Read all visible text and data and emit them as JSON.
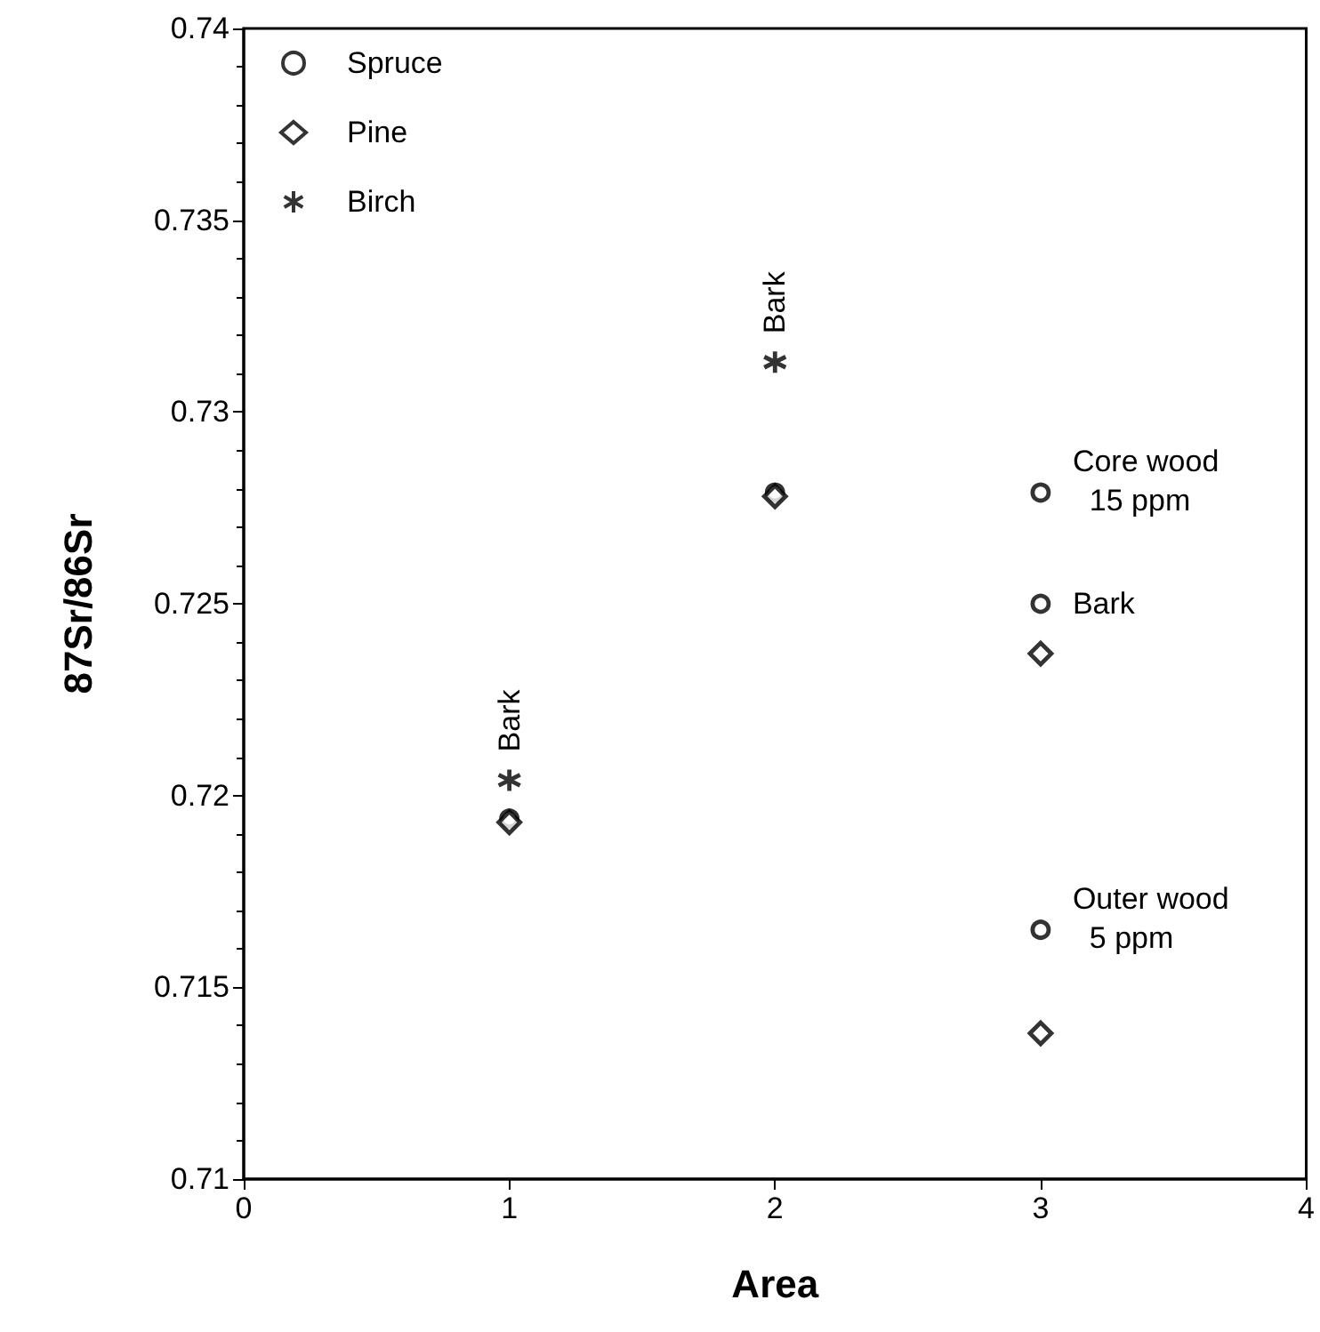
{
  "chart_data": {
    "type": "scatter",
    "xlabel": "Area",
    "ylabel": "87Sr/86Sr",
    "xlim": [
      0,
      4
    ],
    "xticks": [
      0,
      1,
      2,
      3,
      4
    ],
    "ylim": [
      0.71,
      0.74
    ],
    "yticks": [
      0.71,
      0.715,
      0.72,
      0.725,
      0.73,
      0.735,
      0.74
    ],
    "grid": false,
    "legend": "top left",
    "series": [
      {
        "name": "Spruce",
        "color": "#000000",
        "marker": "circle",
        "x": [
          1,
          2,
          3,
          3,
          3
        ],
        "values": [
          0.7194,
          0.7279,
          0.7279,
          0.725,
          0.7165
        ]
      },
      {
        "name": "Pine",
        "color": "#000000",
        "marker": "diamond",
        "x": [
          1,
          2,
          3,
          3
        ],
        "values": [
          0.7193,
          0.7278,
          0.7237,
          0.7138
        ]
      },
      {
        "name": "Birch",
        "color": "#000000",
        "marker": "cross",
        "x": [
          1,
          2
        ],
        "values": [
          0.7204,
          0.7313
        ]
      }
    ],
    "annotations": [
      {
        "text": "Bark",
        "x": 1,
        "y": 0.7204
      },
      {
        "text": "Bark",
        "x": 2,
        "y": 0.7313
      },
      {
        "text": "Core wood\n  15 ppm",
        "x": 3,
        "y": 0.7282
      },
      {
        "text": "Bark",
        "x": 3,
        "y": 0.725
      },
      {
        "text": "Outer wood\n  5 ppm",
        "x": 3,
        "y": 0.7168
      }
    ]
  }
}
